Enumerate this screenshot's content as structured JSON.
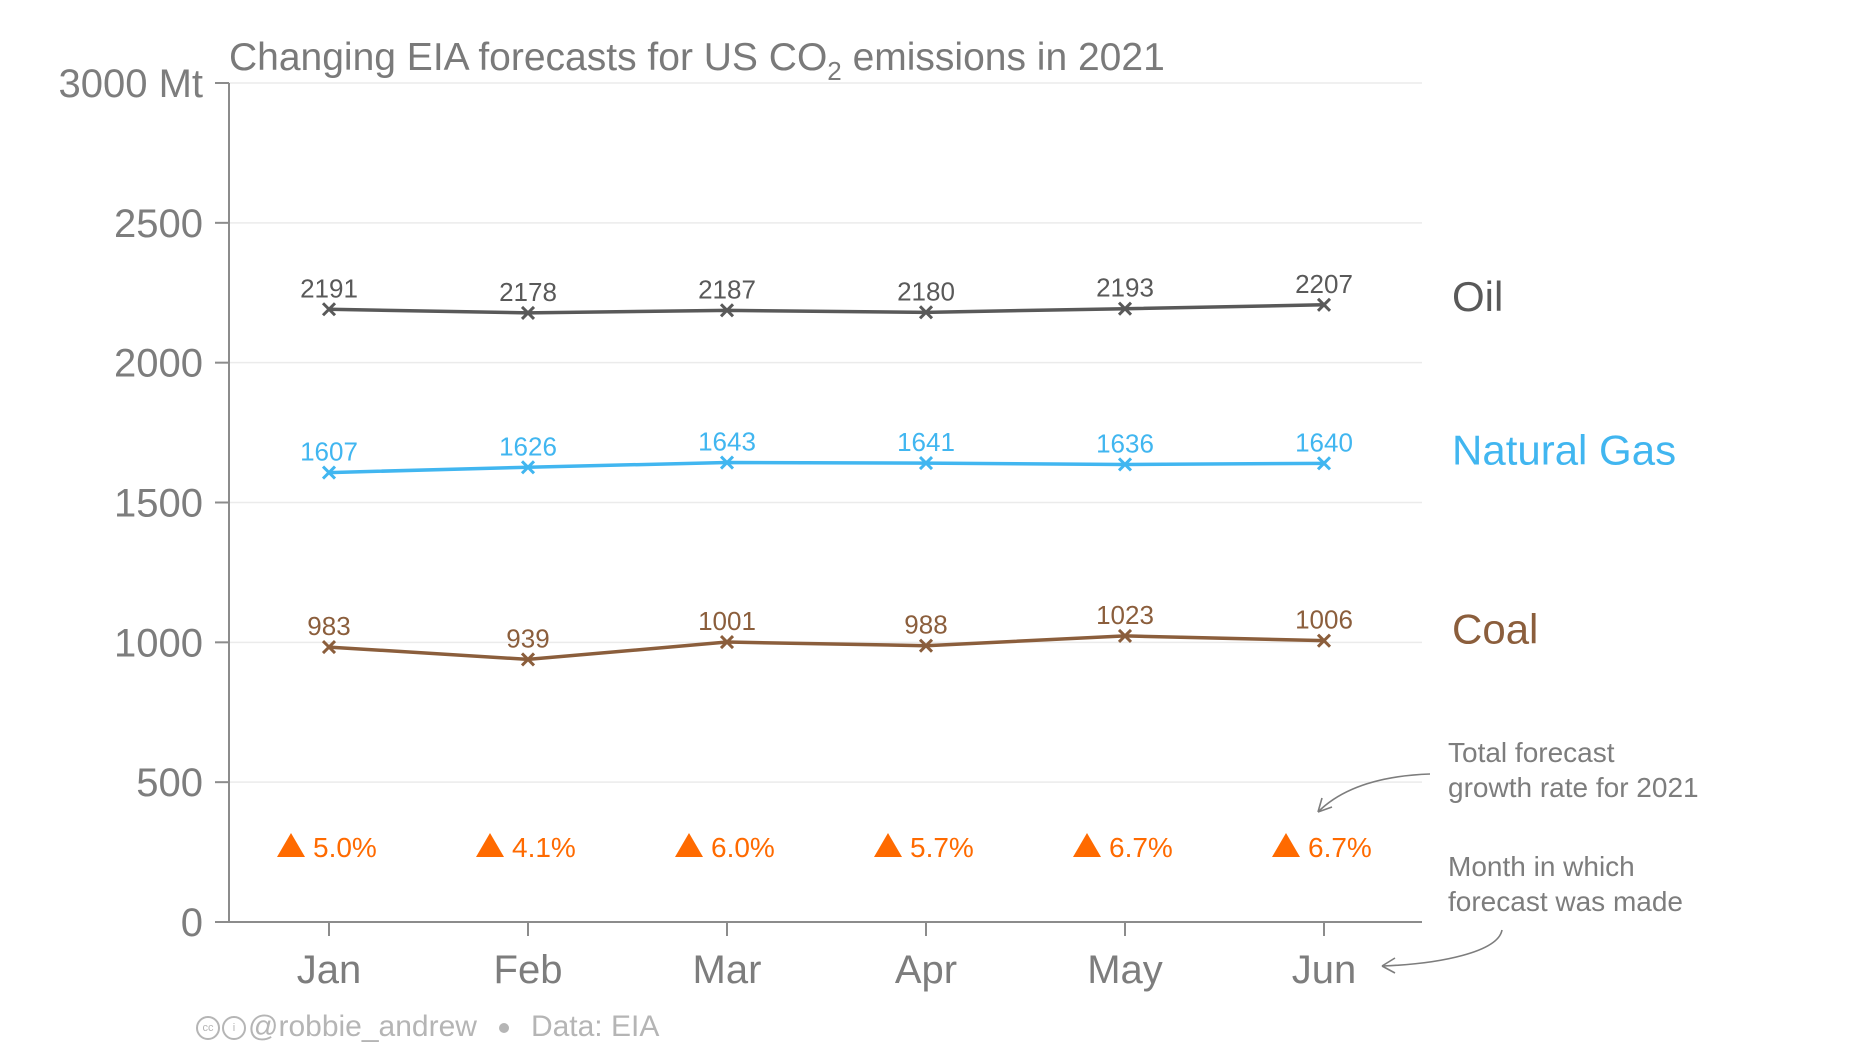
{
  "chart_data": {
    "type": "line",
    "title_pre": "Changing EIA forecasts for US CO",
    "title_sub": "2",
    "title_post": " emissions in 2021",
    "y_unit_label": "3000 Mt",
    "ylim": [
      0,
      3000
    ],
    "y_ticks": [
      0,
      500,
      1000,
      1500,
      2000,
      2500,
      3000
    ],
    "y_tick_labels": [
      "0",
      "500",
      "1000",
      "1500",
      "2000",
      "2500",
      "3000 Mt"
    ],
    "categories": [
      "Jan",
      "Feb",
      "Mar",
      "Apr",
      "May",
      "Jun"
    ],
    "grid": "horizontal",
    "series": [
      {
        "name": "Oil",
        "color": "#595959",
        "values": [
          2191,
          2178,
          2187,
          2180,
          2193,
          2207
        ]
      },
      {
        "name": "Natural Gas",
        "color": "#41b6f0",
        "values": [
          1607,
          1626,
          1643,
          1641,
          1636,
          1640
        ]
      },
      {
        "name": "Coal",
        "color": "#8b5e3c",
        "values": [
          983,
          939,
          1001,
          988,
          1023,
          1006
        ]
      }
    ],
    "growth_rates": {
      "color": "#ff6a00",
      "labels": [
        "5.0%",
        "4.1%",
        "6.0%",
        "5.7%",
        "6.7%",
        "6.7%"
      ]
    },
    "annotations": {
      "growth_note": [
        "Total forecast",
        "growth rate for 2021"
      ],
      "month_note": [
        "Month in which",
        "forecast was made"
      ]
    }
  },
  "footer": {
    "author": "@robbie_andrew",
    "source": "Data: EIA"
  }
}
